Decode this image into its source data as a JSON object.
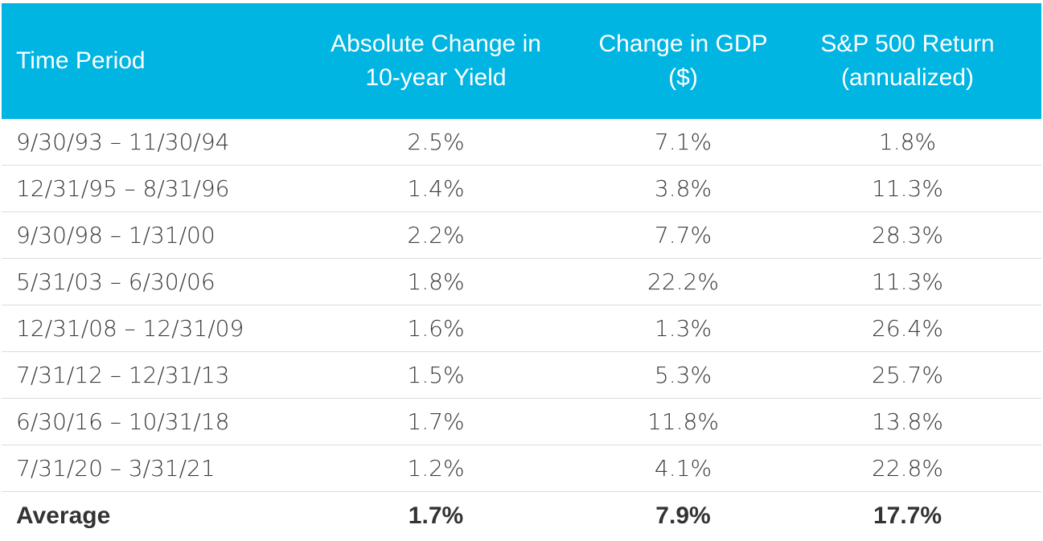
{
  "header": {
    "col_period": "Time Period",
    "col_yield_line1": "Absolute Change in",
    "col_yield_line2": "10-year Yield",
    "col_gdp_line1": "Change in GDP",
    "col_gdp_line2": "($)",
    "col_sp_line1": "S&P 500 Return",
    "col_sp_line2": "(annualized)"
  },
  "rows": [
    {
      "period": "9/30/93 – 11/30/94",
      "yield": "2.5%",
      "gdp": "7.1%",
      "sp": "1.8%"
    },
    {
      "period": "12/31/95 – 8/31/96",
      "yield": "1.4%",
      "gdp": "3.8%",
      "sp": "11.3%"
    },
    {
      "period": "9/30/98 – 1/31/00",
      "yield": "2.2%",
      "gdp": "7.7%",
      "sp": "28.3%"
    },
    {
      "period": "5/31/03 – 6/30/06",
      "yield": "1.8%",
      "gdp": "22.2%",
      "sp": "11.3%"
    },
    {
      "period": "12/31/08 – 12/31/09",
      "yield": "1.6%",
      "gdp": "1.3%",
      "sp": "26.4%"
    },
    {
      "period": "7/31/12 – 12/31/13",
      "yield": "1.5%",
      "gdp": "5.3%",
      "sp": "25.7%"
    },
    {
      "period": "6/30/16 – 10/31/18",
      "yield": "1.7%",
      "gdp": "11.8%",
      "sp": "13.8%"
    },
    {
      "period": "7/31/20 – 3/31/21",
      "yield": "1.2%",
      "gdp": "4.1%",
      "sp": "22.8%"
    }
  ],
  "average": {
    "label": "Average",
    "yield": "1.7%",
    "gdp": "7.9%",
    "sp": "17.7%"
  },
  "colors": {
    "header_bg": "#00b5e2",
    "header_text": "#ffffff",
    "row_divider": "#dcdcdc"
  }
}
